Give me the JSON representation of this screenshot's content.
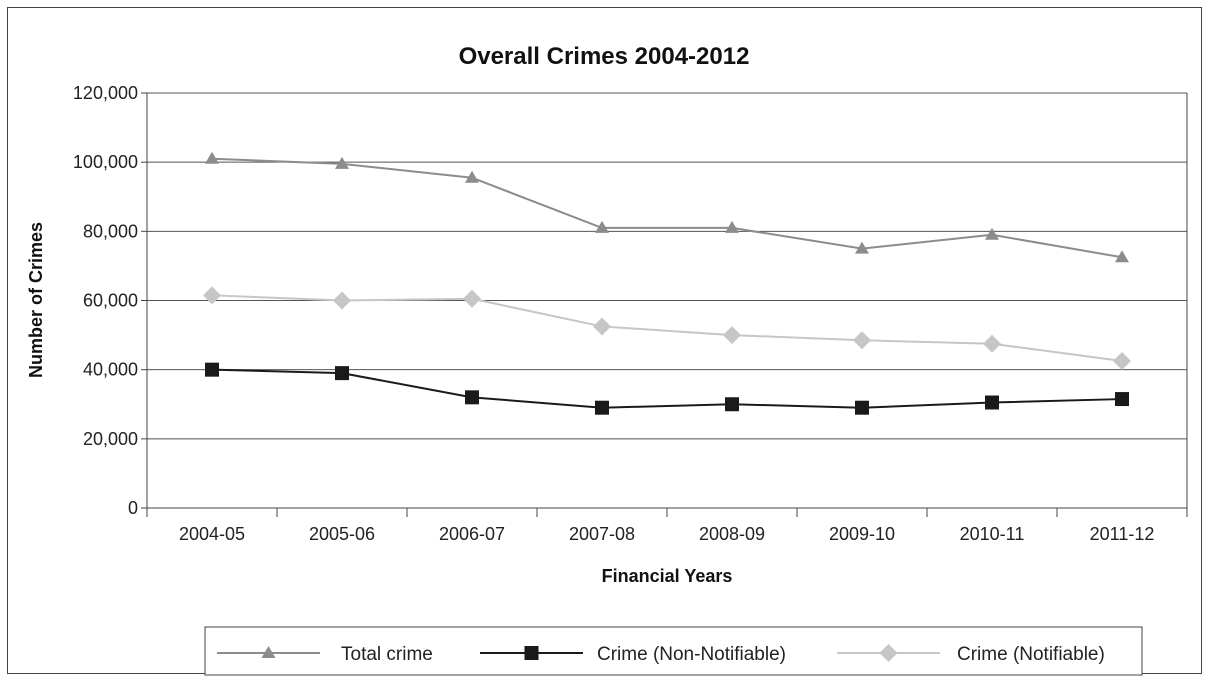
{
  "chart_data": {
    "type": "line",
    "title": "Overall Crimes 2004-2012",
    "xlabel": "Financial Years",
    "ylabel": "Number of Crimes",
    "categories": [
      "2004-05",
      "2005-06",
      "2006-07",
      "2007-08",
      "2008-09",
      "2009-10",
      "2010-11",
      "2011-12"
    ],
    "ylim": [
      0,
      120000
    ],
    "yticks": [
      0,
      20000,
      40000,
      60000,
      80000,
      100000,
      120000
    ],
    "ytick_labels": [
      "0",
      "20,000",
      "40,000",
      "60,000",
      "80,000",
      "100,000",
      "120,000"
    ],
    "grid": true,
    "legend_position": "bottom",
    "series": [
      {
        "name": "Total crime",
        "marker": "triangle",
        "color": "#8c8c8c",
        "values": [
          101000,
          99500,
          95500,
          81000,
          81000,
          75000,
          79000,
          72500
        ]
      },
      {
        "name": "Crime (Non-Notifiable)",
        "marker": "square",
        "color": "#1a1a1a",
        "values": [
          40000,
          39000,
          32000,
          29000,
          30000,
          29000,
          30500,
          31500
        ]
      },
      {
        "name": "Crime (Notifiable)",
        "marker": "diamond",
        "color": "#c6c6c6",
        "values": [
          61500,
          60000,
          60500,
          52500,
          50000,
          48500,
          47500,
          42500
        ]
      }
    ]
  }
}
